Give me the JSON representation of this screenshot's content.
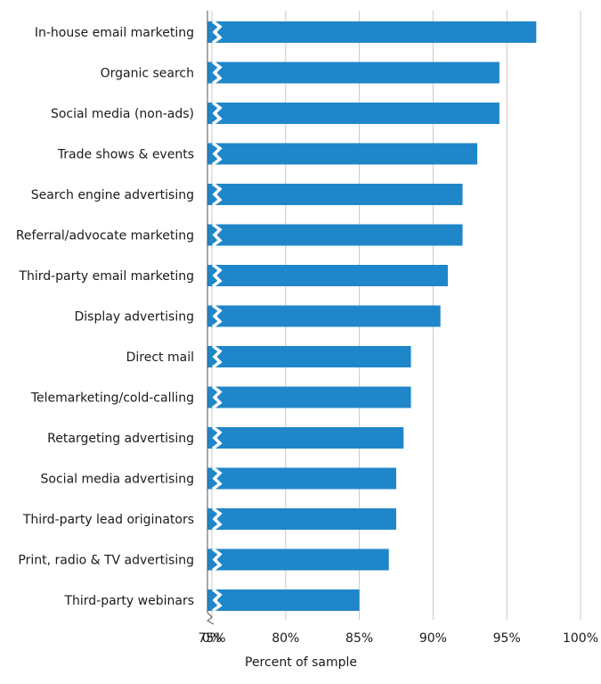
{
  "chart_data": {
    "type": "bar",
    "orientation": "horizontal",
    "title": "",
    "xlabel": "Percent of sample",
    "ylabel": "",
    "axis_break": "between 0% and 75%",
    "categories": [
      "In-house email marketing",
      "Organic search",
      "Social media (non-ads)",
      "Trade shows & events",
      "Search engine advertising",
      "Referral/advocate marketing",
      "Third-party email marketing",
      "Display advertising",
      "Direct mail",
      "Telemarketing/cold-calling",
      "Retargeting advertising",
      "Social media advertising",
      "Third-party lead originators",
      "Print, radio & TV advertising",
      "Third-party webinars"
    ],
    "values": [
      97,
      94.5,
      94.5,
      93,
      92,
      92,
      91,
      90.5,
      88.5,
      88.5,
      88,
      87.5,
      87.5,
      87,
      85
    ],
    "x_ticks": [
      0,
      75,
      80,
      85,
      90,
      95,
      100
    ],
    "x_tick_labels": [
      "0%",
      "75%",
      "80%",
      "85%",
      "90%",
      "95%",
      "100%"
    ],
    "xlim": [
      75,
      100
    ],
    "grid": true,
    "colors": {
      "bar": "#1f87c9",
      "grid": "#c8c8c8",
      "axis": "#555555"
    }
  }
}
